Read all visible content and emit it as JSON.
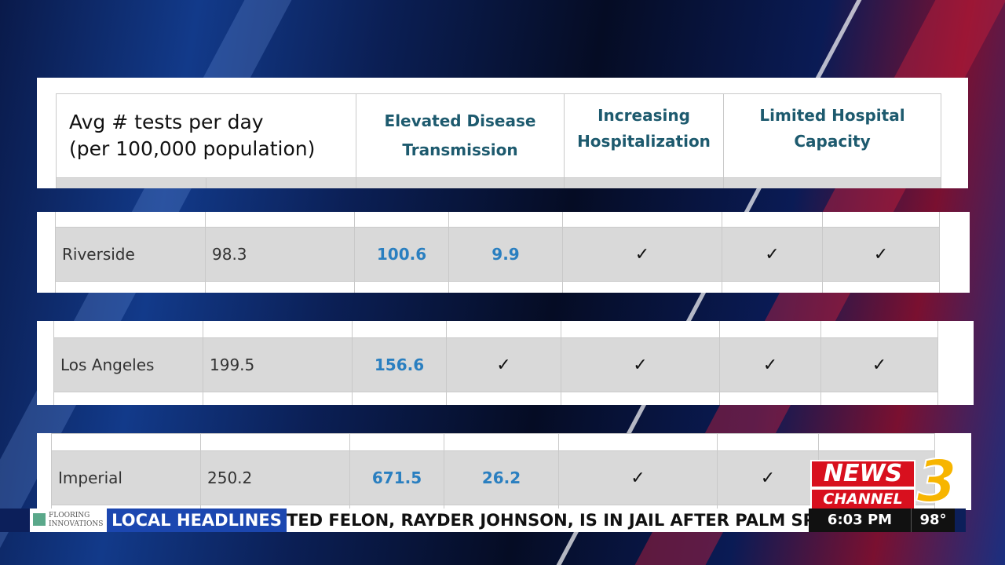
{
  "header": {
    "columns": [
      {
        "lines": [
          "Avg # tests per day",
          "(per 100,000 population)"
        ]
      },
      {
        "lines": [
          "Elevated Disease",
          "Transmission"
        ]
      },
      {
        "lines": [
          "Increasing",
          "Hospitalization"
        ]
      },
      {
        "lines": [
          "Limited Hospital",
          "Capacity"
        ]
      }
    ]
  },
  "rows": [
    [
      "Riverside",
      "98.3",
      "100.6",
      "9.9",
      "✓",
      "✓",
      "✓"
    ],
    [
      "Los Angeles",
      "199.5",
      "156.6",
      "✓",
      "✓",
      "✓",
      "✓"
    ],
    [
      "Imperial",
      "250.2",
      "671.5",
      "26.2",
      "✓",
      "✓"
    ]
  ],
  "ticker": {
    "sponsor": [
      "FLOORING",
      "INNOVATIONS"
    ],
    "label": "LOCAL HEADLINES",
    "headline": "TED FELON, RAYDER JOHNSON, IS IN JAIL AFTER PALM SPRIN",
    "time": "6:03 PM",
    "temperature": "98°"
  },
  "logo": {
    "line1": "NEWS",
    "line2": "CHANNEL",
    "number": "3"
  }
}
